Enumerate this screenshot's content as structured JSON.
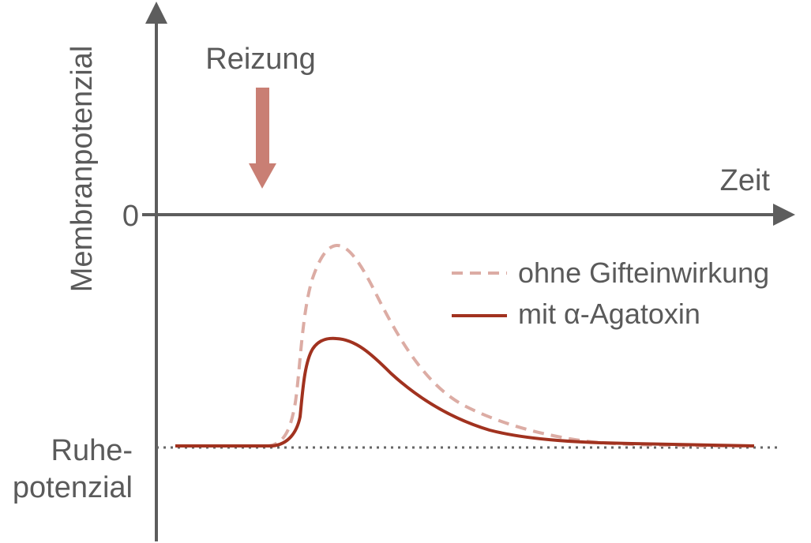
{
  "diagram": {
    "y_axis_label": "Membranpotenzial",
    "x_axis_label": "Zeit",
    "zero_tick": "0",
    "resting_label": [
      "Ruhe-",
      "potenzial"
    ],
    "stimulus_label": "Reizung"
  },
  "chart_data": {
    "type": "line",
    "xlabel": "Zeit",
    "ylabel": "Membranpotenzial",
    "annotations": [
      "Reizung",
      "0",
      "Ruhe-potenzial"
    ],
    "series": [
      {
        "name": "ohne Gifteinwirkung",
        "style": "dashed",
        "color": "#dcaca4"
      },
      {
        "name": "mit α-Agatoxin",
        "style": "solid",
        "color": "#a1321f"
      }
    ]
  },
  "colors": {
    "axis": "#5d5d5d",
    "arrow": "#c97f74",
    "dashed_series": "#dcaca4",
    "solid_series": "#a1321f",
    "baseline": "#666666"
  }
}
